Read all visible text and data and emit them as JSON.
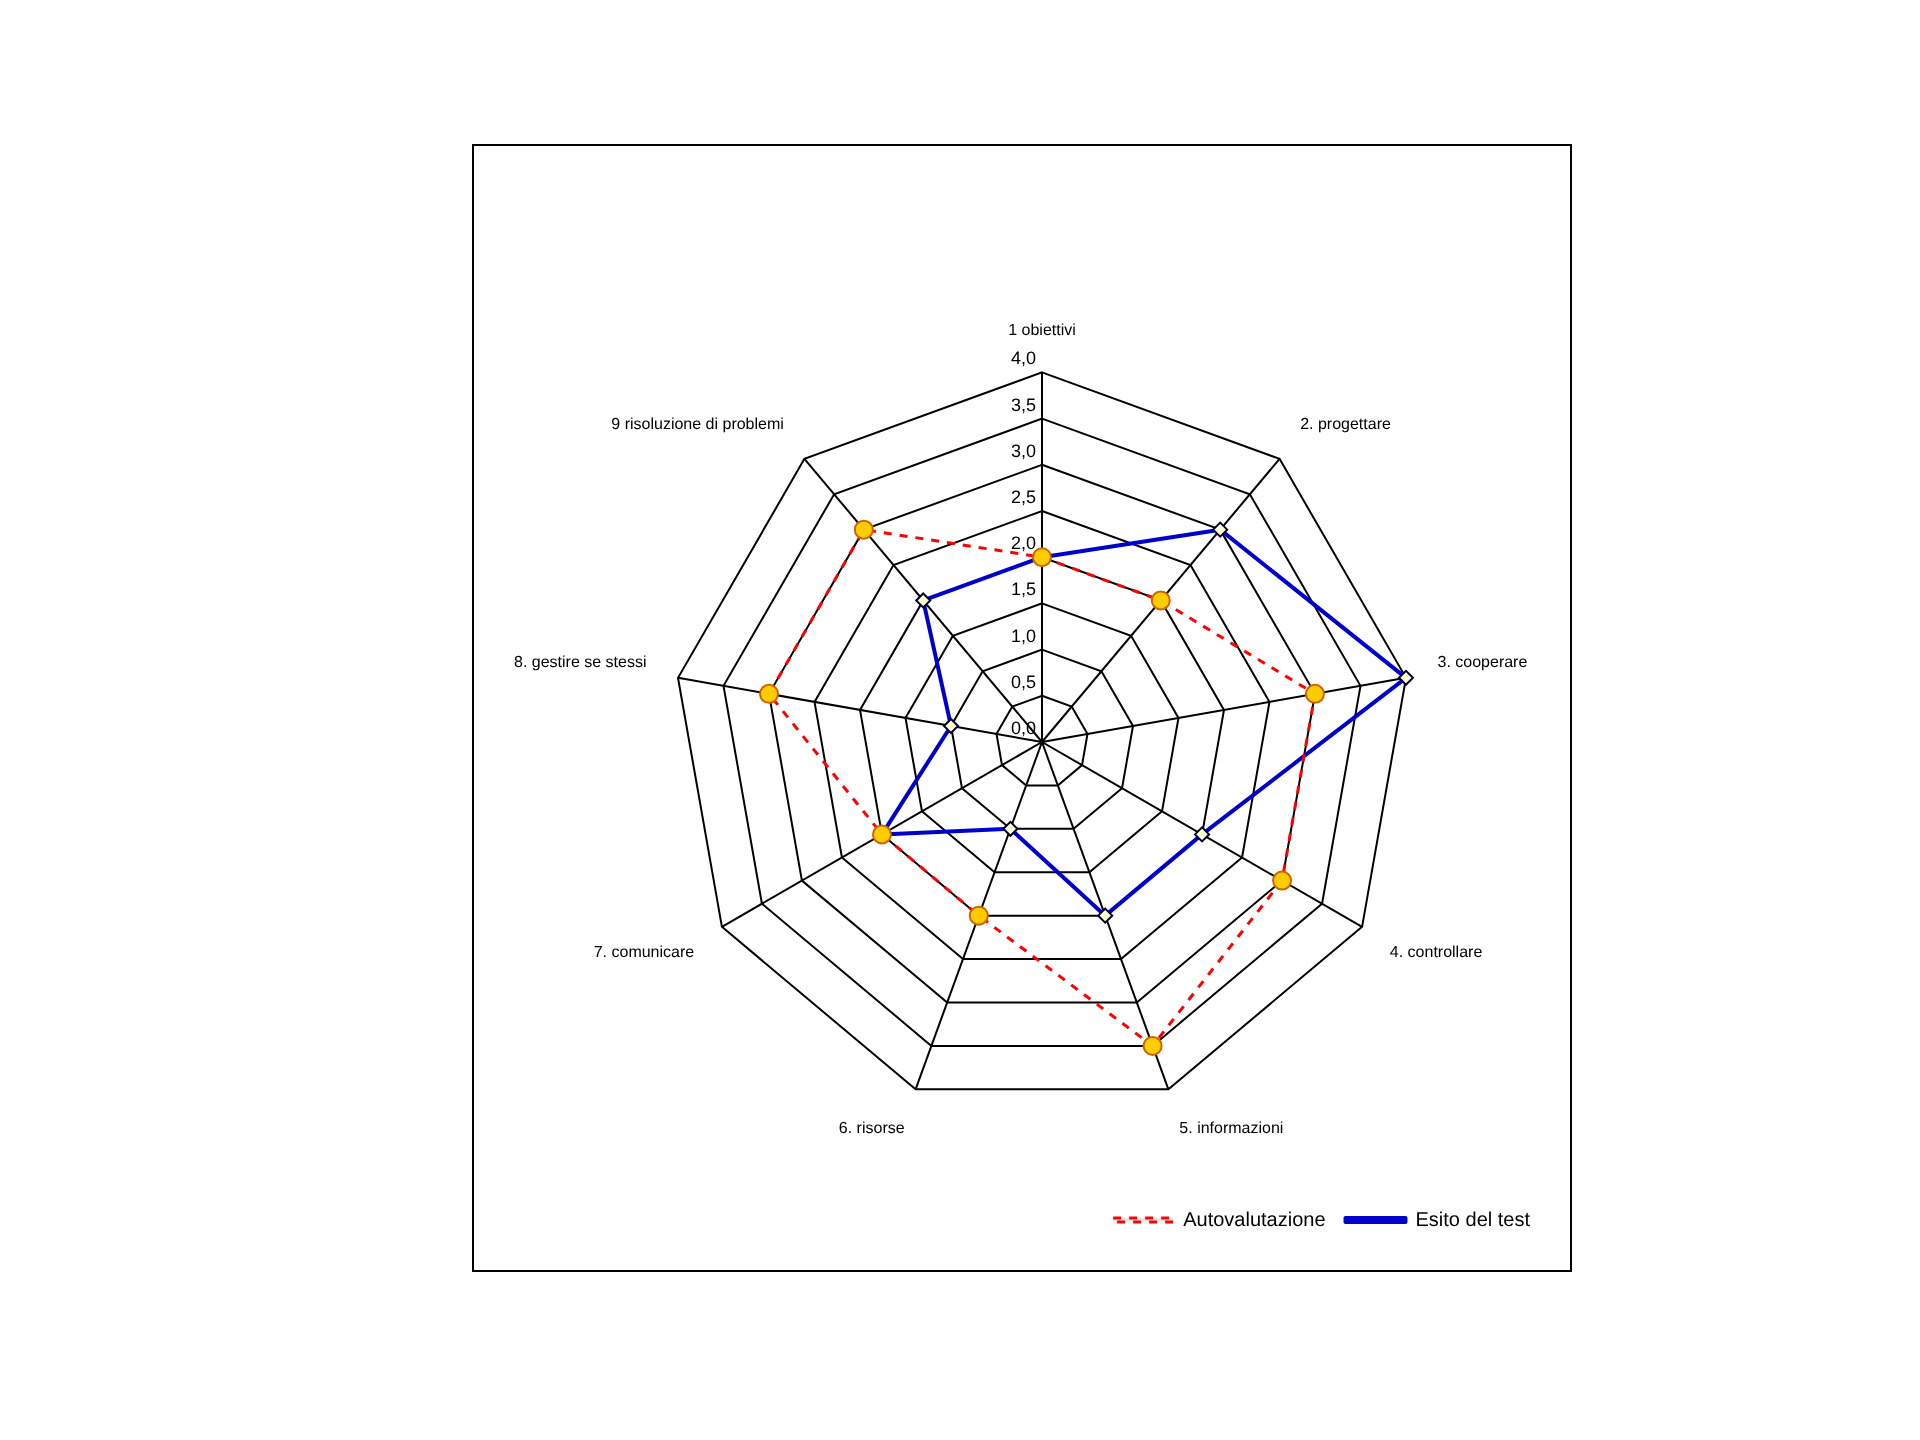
{
  "chart_data": {
    "type": "radar",
    "categories": [
      "1 obiettivi",
      "2. progettare",
      "3. cooperare",
      "4. controllare",
      "5. informazioni",
      "6. risorse",
      "7. comunicare",
      "8. gestire se stessi",
      "9 risoluzione di problemi"
    ],
    "series": [
      {
        "name": "Autovalutazione",
        "color": "#ff0000",
        "marker": "circle",
        "line_style": "dashed",
        "values": [
          2,
          2,
          3,
          3,
          3.5,
          2,
          2,
          3,
          3
        ]
      },
      {
        "name": "Esito del test",
        "color": "#0000cc",
        "marker": "diamond",
        "line_style": "solid",
        "values": [
          2,
          3,
          4,
          2,
          2,
          1,
          2,
          1,
          2
        ]
      }
    ],
    "ylim": [
      0,
      4
    ],
    "yticks": [
      {
        "value": 0,
        "label": "0,0"
      },
      {
        "value": 0.5,
        "label": "0,5"
      },
      {
        "value": 1,
        "label": "1,0"
      },
      {
        "value": 1.5,
        "label": "1,5"
      },
      {
        "value": 2,
        "label": "2,0"
      },
      {
        "value": 2.5,
        "label": "2,5"
      },
      {
        "value": 3,
        "label": "3,0"
      },
      {
        "value": 3.5,
        "label": "3,5"
      },
      {
        "value": 4,
        "label": "4,0"
      }
    ],
    "grid": true,
    "legend": "bottom right"
  }
}
